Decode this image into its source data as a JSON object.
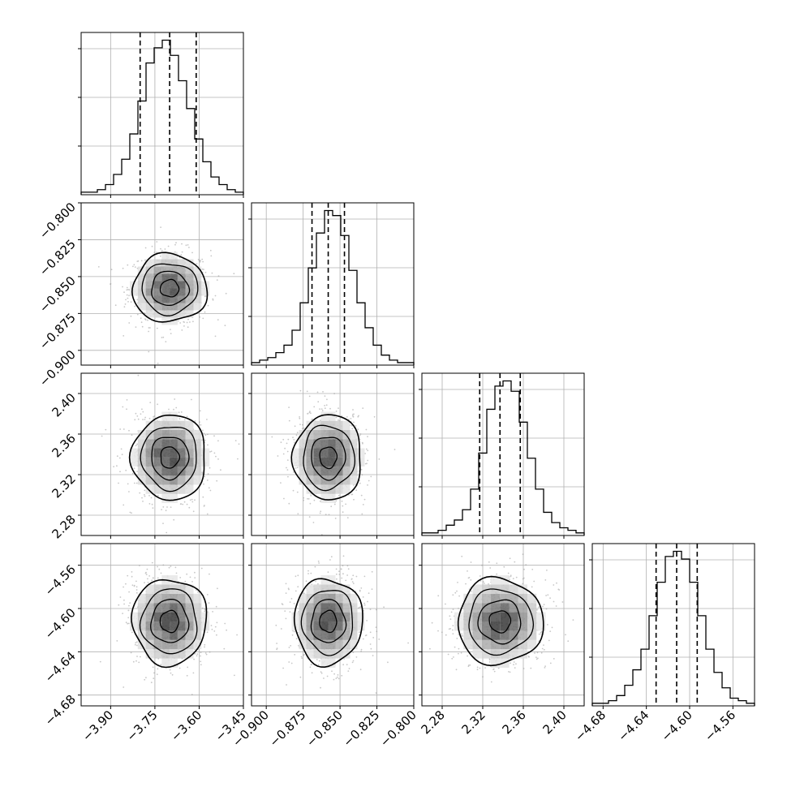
{
  "chart_data": {
    "type": "corner",
    "params": [
      {
        "range": [
          -4.0,
          -3.45
        ],
        "ticks": [
          "-3.90",
          "-3.75",
          "-3.60",
          "-3.45"
        ],
        "median": -3.7,
        "q16": -3.8,
        "q84": -3.61,
        "sd": 0.06,
        "hist_counts": [
          1,
          1,
          2,
          4,
          8,
          14,
          24,
          37,
          52,
          58,
          61,
          55,
          45,
          34,
          22,
          13,
          7,
          4,
          2,
          1
        ]
      },
      {
        "range": [
          -0.91,
          -0.8
        ],
        "ticks": [
          "-0.900",
          "-0.875",
          "-0.850",
          "-0.825",
          "-0.800"
        ],
        "median": -0.858,
        "q16": -0.869,
        "q84": -0.847,
        "sd": 0.011,
        "hist_counts": [
          1,
          2,
          3,
          5,
          8,
          14,
          25,
          39,
          53,
          62,
          60,
          52,
          38,
          25,
          15,
          8,
          4,
          2,
          1,
          1
        ]
      },
      {
        "range": [
          2.26,
          2.42
        ],
        "ticks": [
          "2.28",
          "2.32",
          "2.36",
          "2.40"
        ],
        "median": 2.337,
        "q16": 2.317,
        "q84": 2.357,
        "sd": 0.02,
        "hist_counts": [
          1,
          1,
          2,
          4,
          6,
          10,
          18,
          32,
          49,
          58,
          60,
          56,
          44,
          30,
          18,
          9,
          5,
          3,
          2,
          1
        ]
      },
      {
        "range": [
          -4.69,
          -4.54
        ],
        "ticks": [
          "-4.68",
          "-4.64",
          "-4.60",
          "-4.56"
        ],
        "median": -4.612,
        "q16": -4.631,
        "q84": -4.593,
        "sd": 0.019,
        "hist_counts": [
          1,
          1,
          2,
          4,
          8,
          14,
          22,
          35,
          48,
          58,
          60,
          57,
          48,
          35,
          22,
          13,
          7,
          3,
          2,
          1
        ]
      }
    ],
    "contour_levels_sigma": [
      0.5,
      1.0,
      1.5,
      2.0
    ],
    "grid": true,
    "quantile_lines": "dashed",
    "colors": {
      "line": "#000000",
      "grid": "#b0b0b0",
      "points": "#9a9a9a"
    }
  }
}
